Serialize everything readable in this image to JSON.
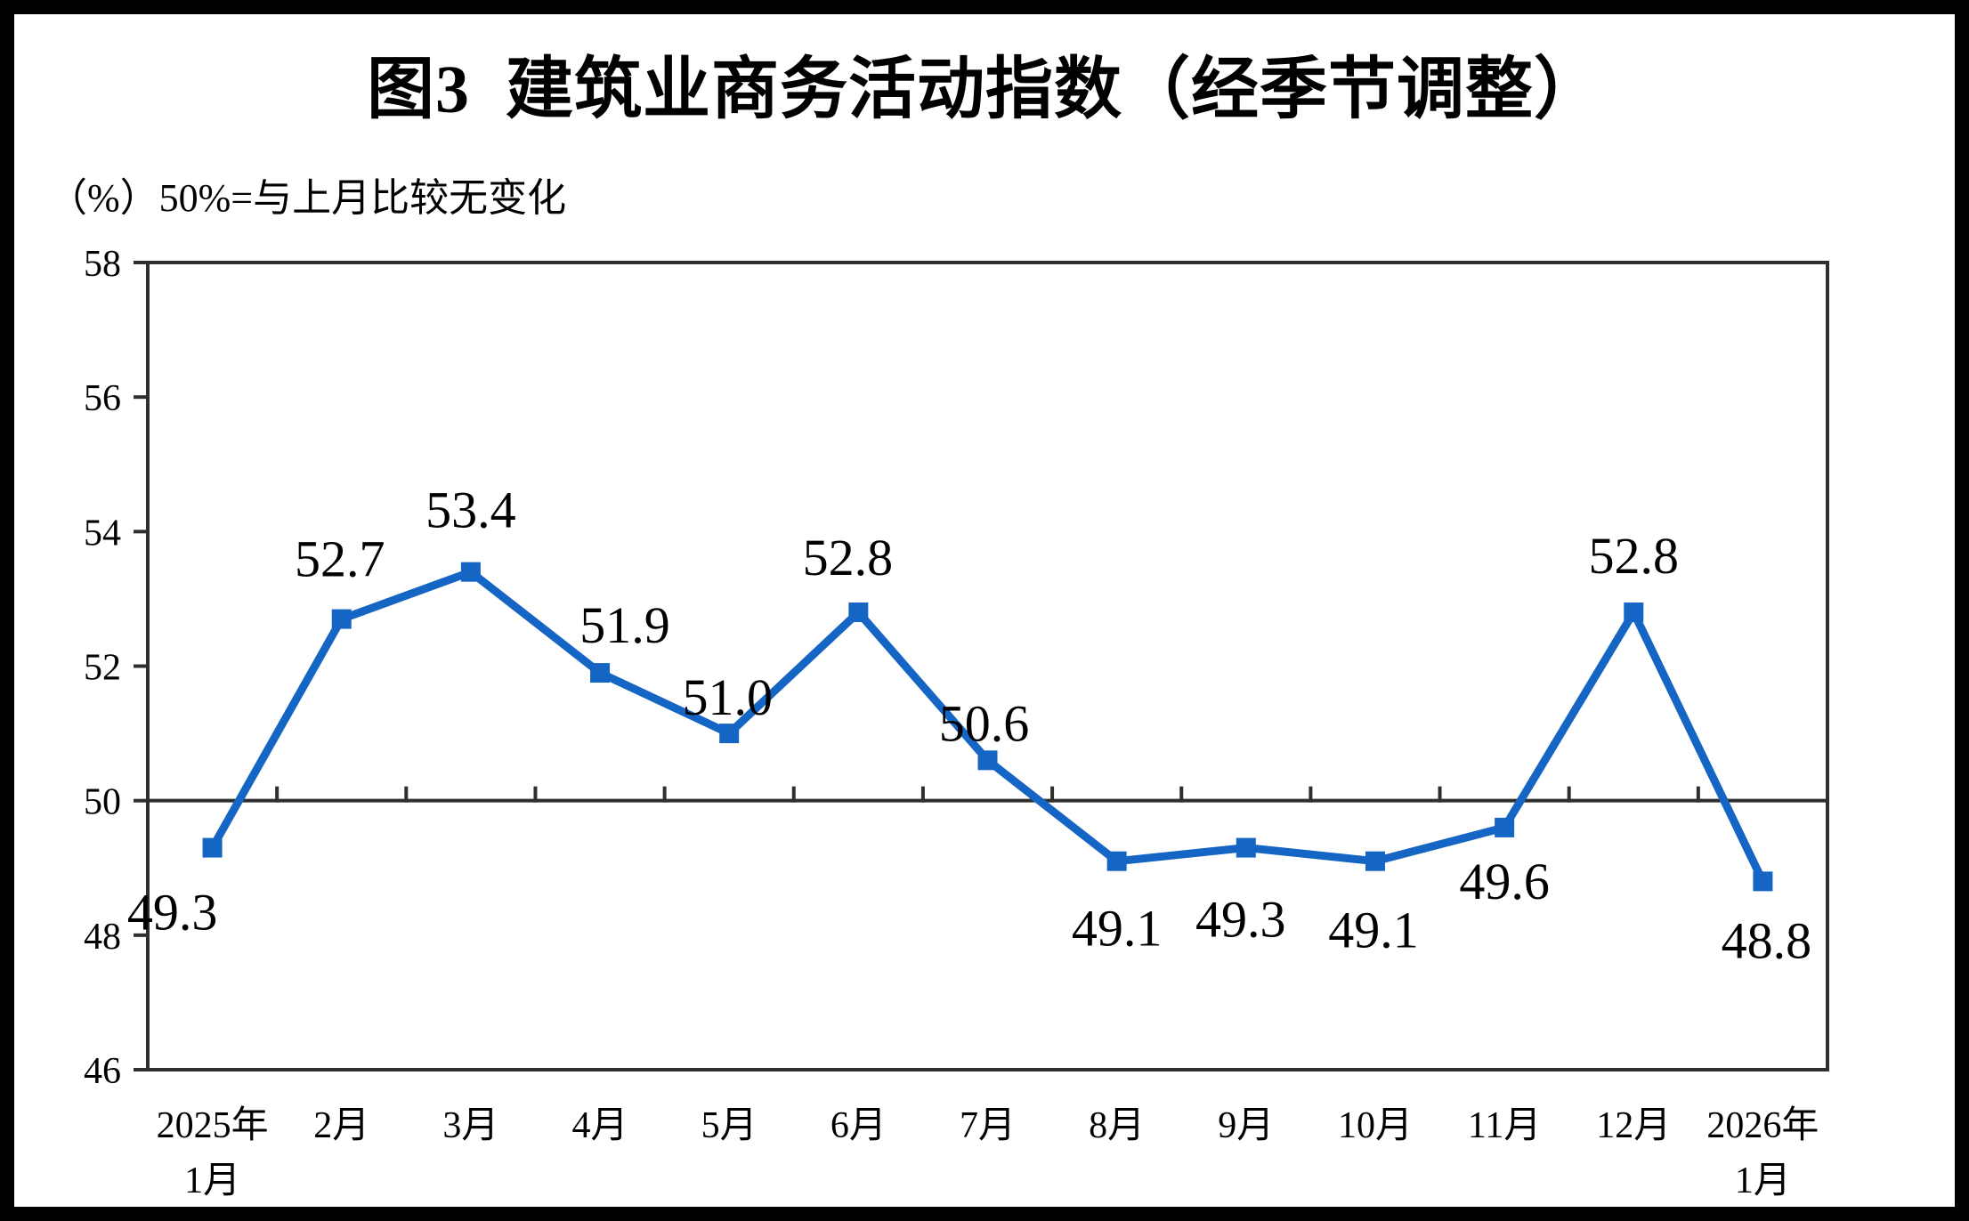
{
  "title": "图3  建筑业商务活动指数（经季节调整）",
  "subtitle": "（%）50%=与上月比较无变化",
  "chart_data": {
    "type": "line",
    "title": "图3 建筑业商务活动指数（经季节调整）",
    "unit_note": "（%）50%=与上月比较无变化",
    "categories": [
      "2025年1月",
      "2月",
      "3月",
      "4月",
      "5月",
      "6月",
      "7月",
      "8月",
      "9月",
      "10月",
      "11月",
      "12月",
      "2026年1月"
    ],
    "category_lines": [
      [
        "2025年",
        "1月"
      ],
      [
        "2月"
      ],
      [
        "3月"
      ],
      [
        "4月"
      ],
      [
        "5月"
      ],
      [
        "6月"
      ],
      [
        "7月"
      ],
      [
        "8月"
      ],
      [
        "9月"
      ],
      [
        "10月"
      ],
      [
        "11月"
      ],
      [
        "12月"
      ],
      [
        "2026年",
        "1月"
      ]
    ],
    "series": [
      {
        "name": "建筑业商务活动指数",
        "values": [
          49.3,
          52.7,
          53.4,
          51.9,
          51.0,
          52.8,
          50.6,
          49.1,
          49.3,
          49.1,
          49.6,
          52.8,
          48.8
        ],
        "labels": [
          "49.3",
          "52.7",
          "53.4",
          "51.9",
          "51.0",
          "52.8",
          "50.6",
          "49.1",
          "49.3",
          "49.1",
          "49.6",
          "52.8",
          "48.8"
        ],
        "color": "#1565C5"
      }
    ],
    "ylim": [
      46,
      58
    ],
    "yticks": [
      58,
      56,
      54,
      52,
      50,
      48,
      46
    ],
    "reference_line": 50,
    "grid": false,
    "legend": "none",
    "axis_color": "#2F2F2F",
    "marker": "square"
  }
}
